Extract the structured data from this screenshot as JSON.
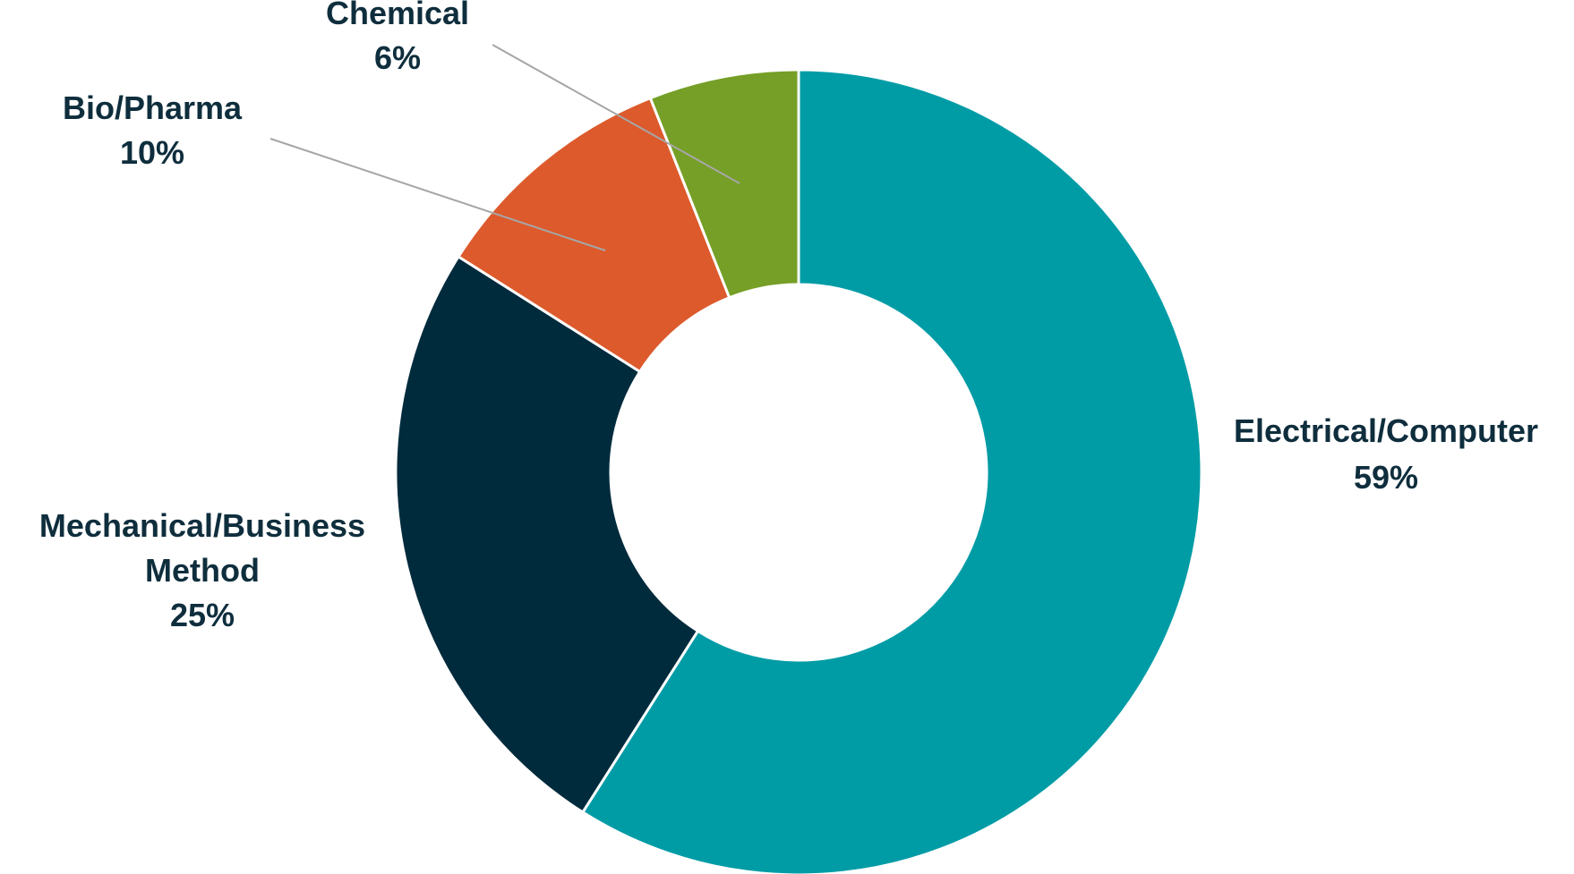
{
  "chart_data": {
    "type": "pie",
    "variant": "donut",
    "title": "",
    "legend": "none (data labels beside slices)",
    "categories": [
      "Electrical/Computer",
      "Mechanical/Business Method",
      "Bio/Pharma",
      "Chemical"
    ],
    "values": [
      59,
      25,
      10,
      6
    ],
    "unit": "%",
    "value_labels": [
      "59%",
      "25%",
      "10%",
      "6%"
    ],
    "category_label_lines": [
      [
        "Electrical/Computer"
      ],
      [
        "Mechanical/Business",
        "Method"
      ],
      [
        "Bio/Pharma"
      ],
      [
        "Chemical"
      ]
    ],
    "colors": [
      "#009ca6",
      "#002b3c",
      "#dc5a2c",
      "#759f26"
    ],
    "label_color": "#0f2e3d",
    "leader_line_color": "#a6a6a6"
  }
}
